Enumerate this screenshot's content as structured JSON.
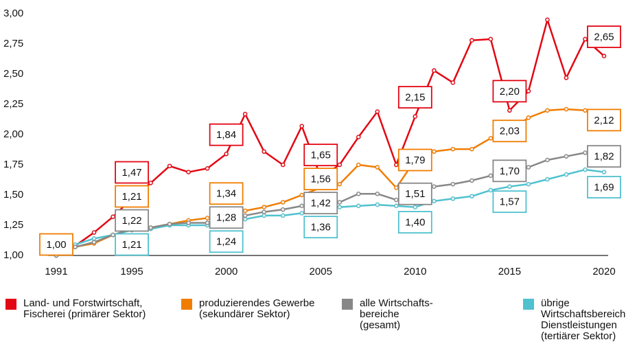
{
  "chart_data": {
    "type": "line",
    "x": [
      1991,
      1992,
      1993,
      1994,
      1995,
      1996,
      1997,
      1998,
      1999,
      2000,
      2001,
      2002,
      2003,
      2004,
      2005,
      2006,
      2007,
      2008,
      2009,
      2010,
      2011,
      2012,
      2013,
      2014,
      2015,
      2016,
      2017,
      2018,
      2019,
      2020
    ],
    "xlim": [
      1991,
      2020
    ],
    "xticks": [
      1991,
      1995,
      2000,
      2005,
      2010,
      2015,
      2020
    ],
    "ylim": [
      1,
      3
    ],
    "yticks": [
      {
        "value": 1,
        "label": "1,00"
      },
      {
        "value": 1.25,
        "label": "1,25"
      },
      {
        "value": 1.5,
        "label": "1,50"
      },
      {
        "value": 1.75,
        "label": "1,75"
      },
      {
        "value": 2,
        "label": "2,00"
      },
      {
        "value": 2.25,
        "label": "2,25"
      },
      {
        "value": 2.5,
        "label": "2,50"
      },
      {
        "value": 2.75,
        "label": "2,75"
      },
      {
        "value": 3,
        "label": "3,00"
      }
    ],
    "series": [
      {
        "name": "Land- und Forstwirtschaft,\nFischerei (primärer Sektor)",
        "color": "#e30613",
        "values": [
          1.0,
          1.08,
          1.19,
          1.32,
          1.47,
          1.6,
          1.74,
          1.69,
          1.72,
          1.84,
          2.17,
          1.86,
          1.75,
          2.07,
          1.65,
          1.75,
          1.98,
          2.19,
          1.75,
          2.15,
          2.53,
          2.43,
          2.78,
          2.79,
          2.2,
          2.36,
          2.95,
          2.47,
          2.79,
          2.65
        ],
        "value_labels": [
          null,
          null,
          null,
          null,
          "1,47",
          null,
          null,
          null,
          null,
          "1,84",
          null,
          null,
          null,
          null,
          "1,65",
          null,
          null,
          null,
          null,
          "2,15",
          null,
          null,
          null,
          null,
          "2,20",
          null,
          null,
          null,
          null,
          "2,65"
        ]
      },
      {
        "name": "produzierendes Gewerbe\n(sekundärer Sektor)",
        "color": "#f07d00",
        "values": [
          1.0,
          1.07,
          1.1,
          1.17,
          1.21,
          1.23,
          1.26,
          1.29,
          1.31,
          1.34,
          1.37,
          1.4,
          1.44,
          1.5,
          1.56,
          1.59,
          1.75,
          1.73,
          1.56,
          1.79,
          1.86,
          1.88,
          1.88,
          1.97,
          2.03,
          2.14,
          2.2,
          2.21,
          2.2,
          2.12
        ],
        "value_labels": [
          "1,00",
          null,
          null,
          null,
          "1,21",
          null,
          null,
          null,
          null,
          "1,34",
          null,
          null,
          null,
          null,
          "1,56",
          null,
          null,
          null,
          null,
          "1,79",
          null,
          null,
          null,
          null,
          "2,03",
          null,
          null,
          null,
          null,
          "2,12"
        ]
      },
      {
        "name": "übrige Wirtschaftsbereiche\nDienstleistungen\n(tertiärer Sektor)",
        "color": "#4fc1cf",
        "values": [
          1.0,
          1.09,
          1.14,
          1.17,
          1.21,
          1.22,
          1.25,
          1.25,
          1.25,
          1.24,
          1.3,
          1.33,
          1.33,
          1.35,
          1.36,
          1.4,
          1.41,
          1.42,
          1.41,
          1.4,
          1.45,
          1.47,
          1.49,
          1.54,
          1.57,
          1.59,
          1.63,
          1.67,
          1.71,
          1.69
        ],
        "value_labels": [
          null,
          null,
          null,
          null,
          "1,21",
          null,
          null,
          null,
          null,
          "1,24",
          null,
          null,
          null,
          null,
          "1,36",
          null,
          null,
          null,
          null,
          "1,40",
          null,
          null,
          null,
          null,
          "1,57",
          null,
          null,
          null,
          null,
          "1,69"
        ]
      },
      {
        "name": "alle Wirtschafts-\nbereiche\n(gesamt)",
        "color": "#878787",
        "values": [
          1.0,
          1.07,
          1.11,
          1.17,
          1.22,
          1.23,
          1.26,
          1.27,
          1.27,
          1.28,
          1.33,
          1.36,
          1.38,
          1.41,
          1.42,
          1.44,
          1.51,
          1.51,
          1.46,
          1.51,
          1.57,
          1.59,
          1.62,
          1.66,
          1.7,
          1.73,
          1.79,
          1.82,
          1.85,
          1.82
        ],
        "value_labels": [
          null,
          null,
          null,
          null,
          "1,22",
          null,
          null,
          null,
          null,
          "1,28",
          null,
          null,
          null,
          null,
          "1,42",
          null,
          null,
          null,
          null,
          "1,51",
          null,
          null,
          null,
          null,
          "1,70",
          null,
          null,
          null,
          null,
          "1,82"
        ]
      }
    ]
  }
}
